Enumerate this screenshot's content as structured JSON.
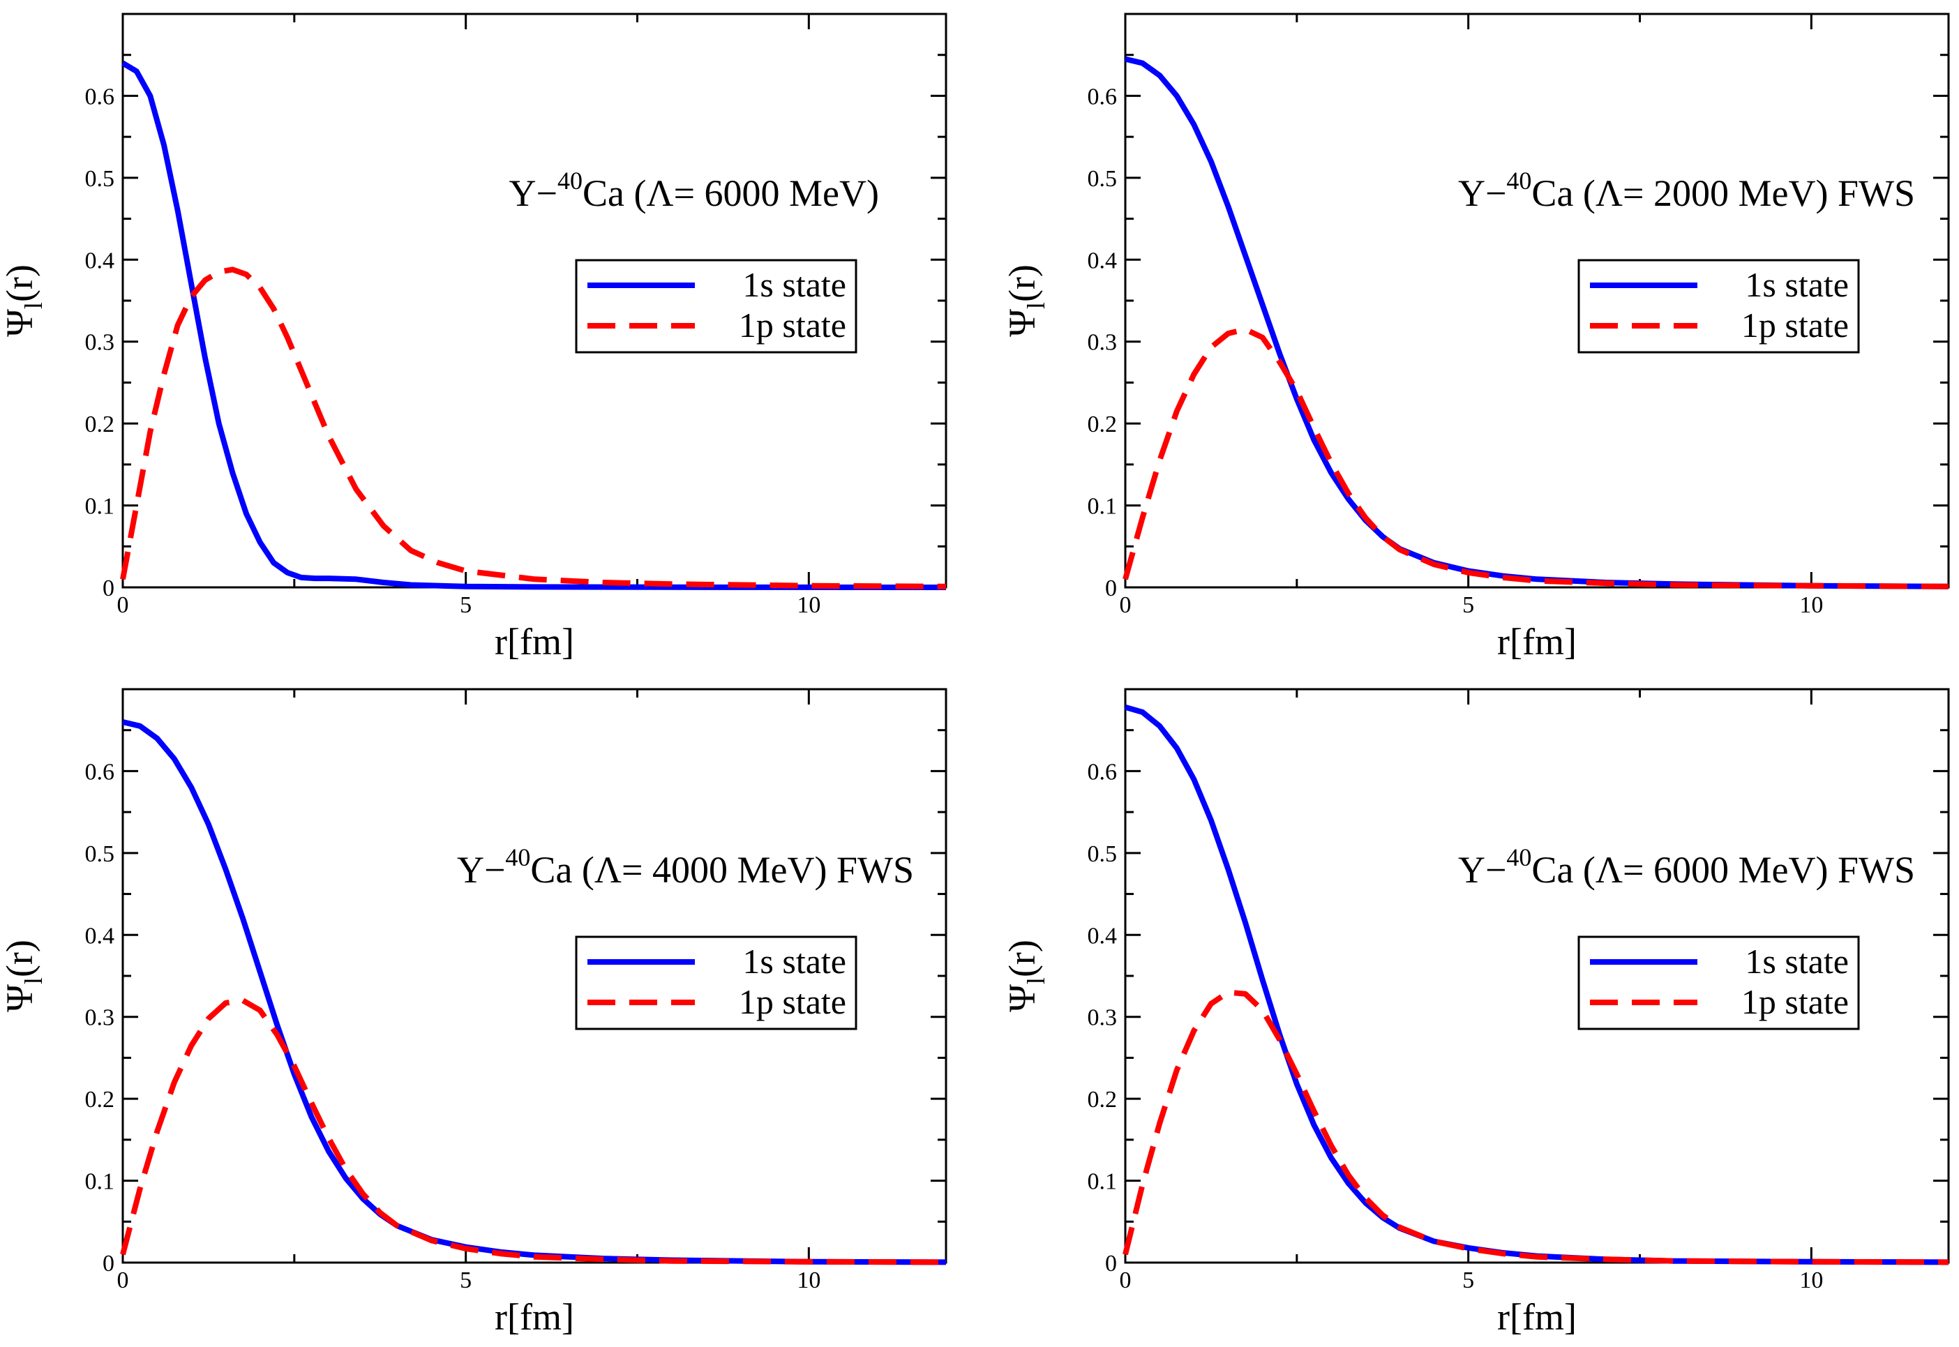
{
  "figure": {
    "legend_1s": "1s state",
    "legend_1p": "1p state",
    "colors": {
      "s1": "#0000ff",
      "p1": "#ff0000"
    }
  },
  "chart_data": [
    {
      "type": "line",
      "title": {
        "pre": "Y−",
        "sup": "40",
        "post": "Ca (Λ= 6000 MeV)"
      },
      "xlabel": "r[fm]",
      "ylabel": {
        "main": "Ψ",
        "sub": "l",
        "post": "(r)"
      },
      "xlim": [
        0,
        12
      ],
      "ylim": [
        0,
        0.7
      ],
      "xticks": [
        0,
        5,
        10
      ],
      "xtick_labels": [
        "0",
        "5",
        "10"
      ],
      "yticks": [
        0,
        0.1,
        0.2,
        0.3,
        0.4,
        0.5,
        0.6
      ],
      "ytick_labels": [
        "0",
        "0.1",
        "0.2",
        "0.3",
        "0.4",
        "0.5",
        "0.6"
      ],
      "grid": false,
      "legend": "right",
      "series": [
        {
          "name": "1s state",
          "style": "solid",
          "x": [
            0,
            0.2,
            0.4,
            0.6,
            0.8,
            1.0,
            1.2,
            1.4,
            1.6,
            1.8,
            2.0,
            2.2,
            2.4,
            2.6,
            2.8,
            3.0,
            3.4,
            3.8,
            4.2,
            5.0,
            6.0,
            8.0,
            12.0
          ],
          "y": [
            0.64,
            0.63,
            0.6,
            0.54,
            0.46,
            0.37,
            0.28,
            0.2,
            0.14,
            0.09,
            0.055,
            0.03,
            0.018,
            0.012,
            0.011,
            0.011,
            0.01,
            0.006,
            0.003,
            0.001,
            0.0005,
            0.0002,
            0
          ]
        },
        {
          "name": "1p state",
          "style": "dashed",
          "x": [
            0,
            0.2,
            0.4,
            0.6,
            0.8,
            1.0,
            1.2,
            1.4,
            1.6,
            1.8,
            2.0,
            2.2,
            2.4,
            2.6,
            2.8,
            3.0,
            3.4,
            3.8,
            4.2,
            4.6,
            5.0,
            6.0,
            7.0,
            8.0,
            10.0,
            12.0
          ],
          "y": [
            0.01,
            0.1,
            0.19,
            0.26,
            0.32,
            0.355,
            0.375,
            0.385,
            0.388,
            0.382,
            0.366,
            0.34,
            0.305,
            0.265,
            0.225,
            0.185,
            0.12,
            0.075,
            0.045,
            0.03,
            0.02,
            0.01,
            0.006,
            0.004,
            0.002,
            0.001
          ]
        }
      ]
    },
    {
      "type": "line",
      "title": {
        "pre": "Y−",
        "sup": "40",
        "post": "Ca (Λ= 2000 MeV) FWS"
      },
      "xlabel": "r[fm]",
      "ylabel": {
        "main": "Ψ",
        "sub": "l",
        "post": "(r)"
      },
      "xlim": [
        0,
        12
      ],
      "ylim": [
        0,
        0.7
      ],
      "xticks": [
        0,
        5,
        10
      ],
      "xtick_labels": [
        "0",
        "5",
        "10"
      ],
      "yticks": [
        0,
        0.1,
        0.2,
        0.3,
        0.4,
        0.5,
        0.6
      ],
      "ytick_labels": [
        "0",
        "0.1",
        "0.2",
        "0.3",
        "0.4",
        "0.5",
        "0.6"
      ],
      "grid": false,
      "legend": "right",
      "series": [
        {
          "name": "1s state",
          "style": "solid",
          "x": [
            0,
            0.25,
            0.5,
            0.75,
            1.0,
            1.25,
            1.5,
            1.75,
            2.0,
            2.25,
            2.5,
            2.75,
            3.0,
            3.25,
            3.5,
            3.75,
            4.0,
            4.5,
            5.0,
            5.5,
            6.0,
            7.0,
            8.0,
            10.0,
            12.0
          ],
          "y": [
            0.645,
            0.64,
            0.625,
            0.6,
            0.565,
            0.52,
            0.465,
            0.405,
            0.345,
            0.285,
            0.23,
            0.18,
            0.14,
            0.108,
            0.082,
            0.062,
            0.047,
            0.03,
            0.02,
            0.014,
            0.01,
            0.006,
            0.004,
            0.002,
            0.001
          ]
        },
        {
          "name": "1p state",
          "style": "dashed",
          "x": [
            0,
            0.25,
            0.5,
            0.75,
            1.0,
            1.25,
            1.5,
            1.75,
            2.0,
            2.25,
            2.5,
            2.75,
            3.0,
            3.25,
            3.5,
            3.75,
            4.0,
            4.5,
            5.0,
            5.5,
            6.0,
            7.0,
            8.0,
            10.0,
            12.0
          ],
          "y": [
            0.01,
            0.085,
            0.155,
            0.215,
            0.26,
            0.293,
            0.31,
            0.315,
            0.305,
            0.275,
            0.24,
            0.195,
            0.152,
            0.115,
            0.085,
            0.062,
            0.046,
            0.028,
            0.018,
            0.012,
            0.008,
            0.005,
            0.003,
            0.002,
            0.001
          ]
        }
      ]
    },
    {
      "type": "line",
      "title": {
        "pre": "Y−",
        "sup": "40",
        "post": "Ca (Λ= 4000 MeV) FWS"
      },
      "xlabel": "r[fm]",
      "ylabel": {
        "main": "Ψ",
        "sub": "l",
        "post": "(r)"
      },
      "xlim": [
        0,
        12
      ],
      "ylim": [
        0,
        0.7
      ],
      "xticks": [
        0,
        5,
        10
      ],
      "xtick_labels": [
        "0",
        "5",
        "10"
      ],
      "yticks": [
        0,
        0.1,
        0.2,
        0.3,
        0.4,
        0.5,
        0.6
      ],
      "ytick_labels": [
        "0",
        "0.1",
        "0.2",
        "0.3",
        "0.4",
        "0.5",
        "0.6"
      ],
      "grid": false,
      "legend": "right",
      "series": [
        {
          "name": "1s state",
          "style": "solid",
          "x": [
            0,
            0.25,
            0.5,
            0.75,
            1.0,
            1.25,
            1.5,
            1.75,
            2.0,
            2.25,
            2.5,
            2.75,
            3.0,
            3.25,
            3.5,
            3.75,
            4.0,
            4.5,
            5.0,
            5.5,
            6.0,
            7.0,
            8.0,
            10.0,
            12.0
          ],
          "y": [
            0.66,
            0.655,
            0.64,
            0.615,
            0.58,
            0.535,
            0.48,
            0.42,
            0.355,
            0.29,
            0.23,
            0.178,
            0.136,
            0.103,
            0.078,
            0.059,
            0.045,
            0.028,
            0.019,
            0.013,
            0.009,
            0.005,
            0.003,
            0.001,
            0.0005
          ]
        },
        {
          "name": "1p state",
          "style": "dashed",
          "x": [
            0,
            0.25,
            0.5,
            0.75,
            1.0,
            1.25,
            1.5,
            1.75,
            2.0,
            2.25,
            2.5,
            2.75,
            3.0,
            3.25,
            3.5,
            3.75,
            4.0,
            4.5,
            5.0,
            5.5,
            6.0,
            7.0,
            8.0,
            10.0,
            12.0
          ],
          "y": [
            0.01,
            0.09,
            0.16,
            0.22,
            0.265,
            0.298,
            0.317,
            0.32,
            0.308,
            0.278,
            0.24,
            0.195,
            0.152,
            0.114,
            0.084,
            0.061,
            0.045,
            0.027,
            0.017,
            0.011,
            0.007,
            0.004,
            0.002,
            0.001,
            0.0005
          ]
        }
      ]
    },
    {
      "type": "line",
      "title": {
        "pre": "Y−",
        "sup": "40",
        "post": "Ca (Λ= 6000 MeV) FWS"
      },
      "xlabel": "r[fm]",
      "ylabel": {
        "main": "Ψ",
        "sub": "l",
        "post": "(r)"
      },
      "xlim": [
        0,
        12
      ],
      "ylim": [
        0,
        0.7
      ],
      "xticks": [
        0,
        5,
        10
      ],
      "xtick_labels": [
        "0",
        "5",
        "10"
      ],
      "yticks": [
        0,
        0.1,
        0.2,
        0.3,
        0.4,
        0.5,
        0.6
      ],
      "ytick_labels": [
        "0",
        "0.1",
        "0.2",
        "0.3",
        "0.4",
        "0.5",
        "0.6"
      ],
      "grid": false,
      "legend": "right",
      "series": [
        {
          "name": "1s state",
          "style": "solid",
          "x": [
            0,
            0.25,
            0.5,
            0.75,
            1.0,
            1.25,
            1.5,
            1.75,
            2.0,
            2.25,
            2.5,
            2.75,
            3.0,
            3.25,
            3.5,
            3.75,
            4.0,
            4.5,
            5.0,
            5.5,
            6.0,
            7.0,
            8.0,
            10.0,
            12.0
          ],
          "y": [
            0.678,
            0.672,
            0.655,
            0.628,
            0.59,
            0.54,
            0.48,
            0.415,
            0.345,
            0.278,
            0.218,
            0.168,
            0.128,
            0.097,
            0.073,
            0.055,
            0.042,
            0.026,
            0.018,
            0.012,
            0.008,
            0.004,
            0.002,
            0.001,
            0.0005
          ]
        },
        {
          "name": "1p state",
          "style": "dashed",
          "x": [
            0,
            0.25,
            0.5,
            0.75,
            1.0,
            1.25,
            1.5,
            1.75,
            2.0,
            2.25,
            2.5,
            2.75,
            3.0,
            3.25,
            3.5,
            3.75,
            4.0,
            4.5,
            5.0,
            5.5,
            6.0,
            7.0,
            8.0,
            10.0,
            12.0
          ],
          "y": [
            0.01,
            0.095,
            0.17,
            0.235,
            0.283,
            0.316,
            0.33,
            0.328,
            0.308,
            0.272,
            0.23,
            0.185,
            0.143,
            0.107,
            0.079,
            0.058,
            0.043,
            0.026,
            0.017,
            0.011,
            0.007,
            0.004,
            0.002,
            0.001,
            0.0005
          ]
        }
      ]
    }
  ]
}
